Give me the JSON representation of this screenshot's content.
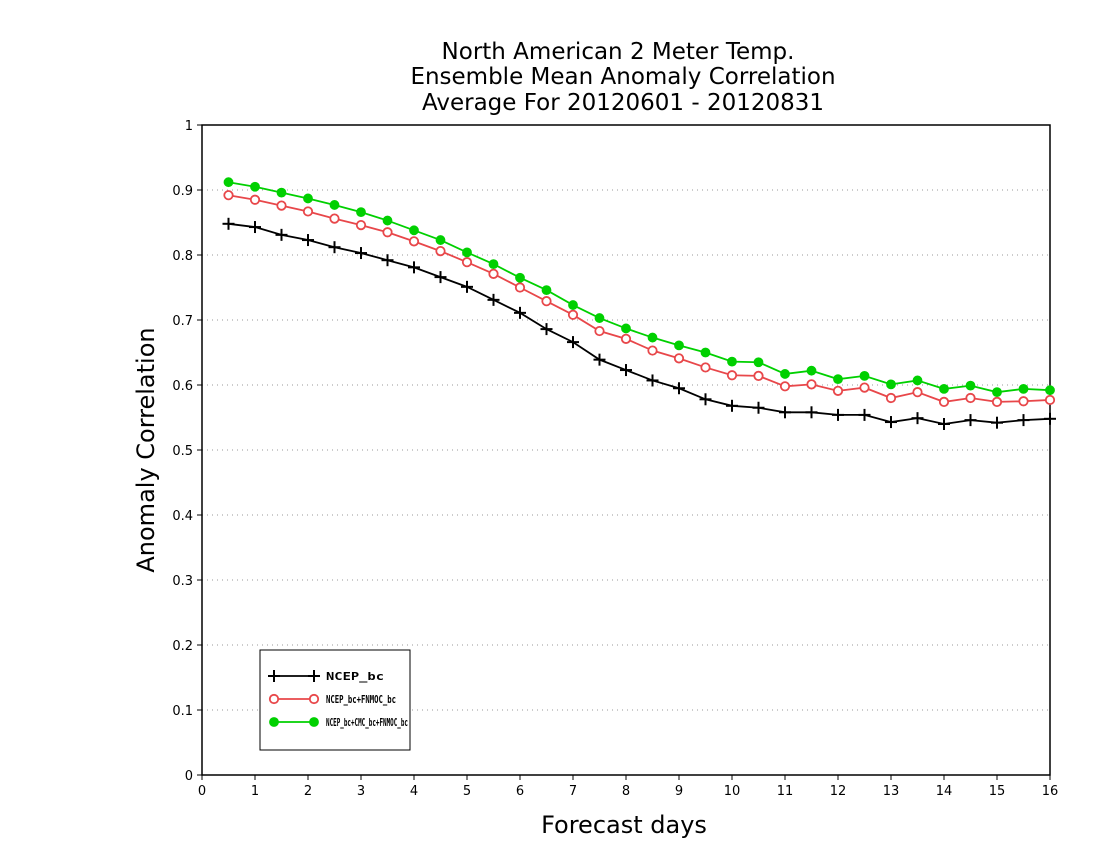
{
  "chart_data": {
    "type": "line",
    "title_lines": [
      "North American 2 Meter Temp.",
      "Ensemble Mean Anomaly Correlation",
      "Average For 20120601 - 20120831"
    ],
    "xlabel": "Forecast days",
    "ylabel": "Anomaly Correlation",
    "xlim": [
      0,
      16
    ],
    "ylim": [
      0,
      1
    ],
    "xticks": [
      0,
      1,
      2,
      3,
      4,
      5,
      6,
      7,
      8,
      9,
      10,
      11,
      12,
      13,
      14,
      15,
      16
    ],
    "yticks": [
      0,
      0.1,
      0.2,
      0.3,
      0.4,
      0.5,
      0.6,
      0.7,
      0.8,
      0.9,
      1
    ],
    "grid": "horizontal dotted",
    "legend_position": "bottom-left",
    "x": [
      0.5,
      1,
      1.5,
      2,
      2.5,
      3,
      3.5,
      4,
      4.5,
      5,
      5.5,
      6,
      6.5,
      7,
      7.5,
      8,
      8.5,
      9,
      9.5,
      10,
      10.5,
      11,
      11.5,
      12,
      12.5,
      13,
      13.5,
      14,
      14.5,
      15,
      15.5,
      16
    ],
    "series": [
      {
        "name": "NCEP_bc",
        "color": "#000000",
        "marker": "plus",
        "values": [
          0.848,
          0.843,
          0.831,
          0.823,
          0.812,
          0.803,
          0.792,
          0.781,
          0.766,
          0.751,
          0.731,
          0.711,
          0.686,
          0.666,
          0.639,
          0.623,
          0.607,
          0.595,
          0.578,
          0.568,
          0.565,
          0.558,
          0.558,
          0.554,
          0.554,
          0.543,
          0.549,
          0.54,
          0.546,
          0.542,
          0.546,
          0.548
        ]
      },
      {
        "name": "NCEP_bc+FNMOC_bc",
        "color": "#e8474a",
        "marker": "open-circle",
        "values": [
          0.892,
          0.885,
          0.876,
          0.867,
          0.856,
          0.846,
          0.835,
          0.821,
          0.806,
          0.789,
          0.771,
          0.75,
          0.729,
          0.708,
          0.683,
          0.671,
          0.653,
          0.641,
          0.627,
          0.615,
          0.614,
          0.598,
          0.601,
          0.591,
          0.596,
          0.58,
          0.589,
          0.574,
          0.58,
          0.574,
          0.575,
          0.577
        ]
      },
      {
        "name": "NCEP_bc+CMC_bc+FNMOC_bc",
        "color": "#00d000",
        "marker": "filled-circle",
        "values": [
          0.912,
          0.905,
          0.896,
          0.887,
          0.877,
          0.866,
          0.853,
          0.838,
          0.823,
          0.804,
          0.786,
          0.765,
          0.746,
          0.723,
          0.703,
          0.687,
          0.673,
          0.661,
          0.65,
          0.636,
          0.635,
          0.617,
          0.622,
          0.609,
          0.614,
          0.601,
          0.607,
          0.594,
          0.599,
          0.589,
          0.594,
          0.592
        ]
      }
    ]
  }
}
